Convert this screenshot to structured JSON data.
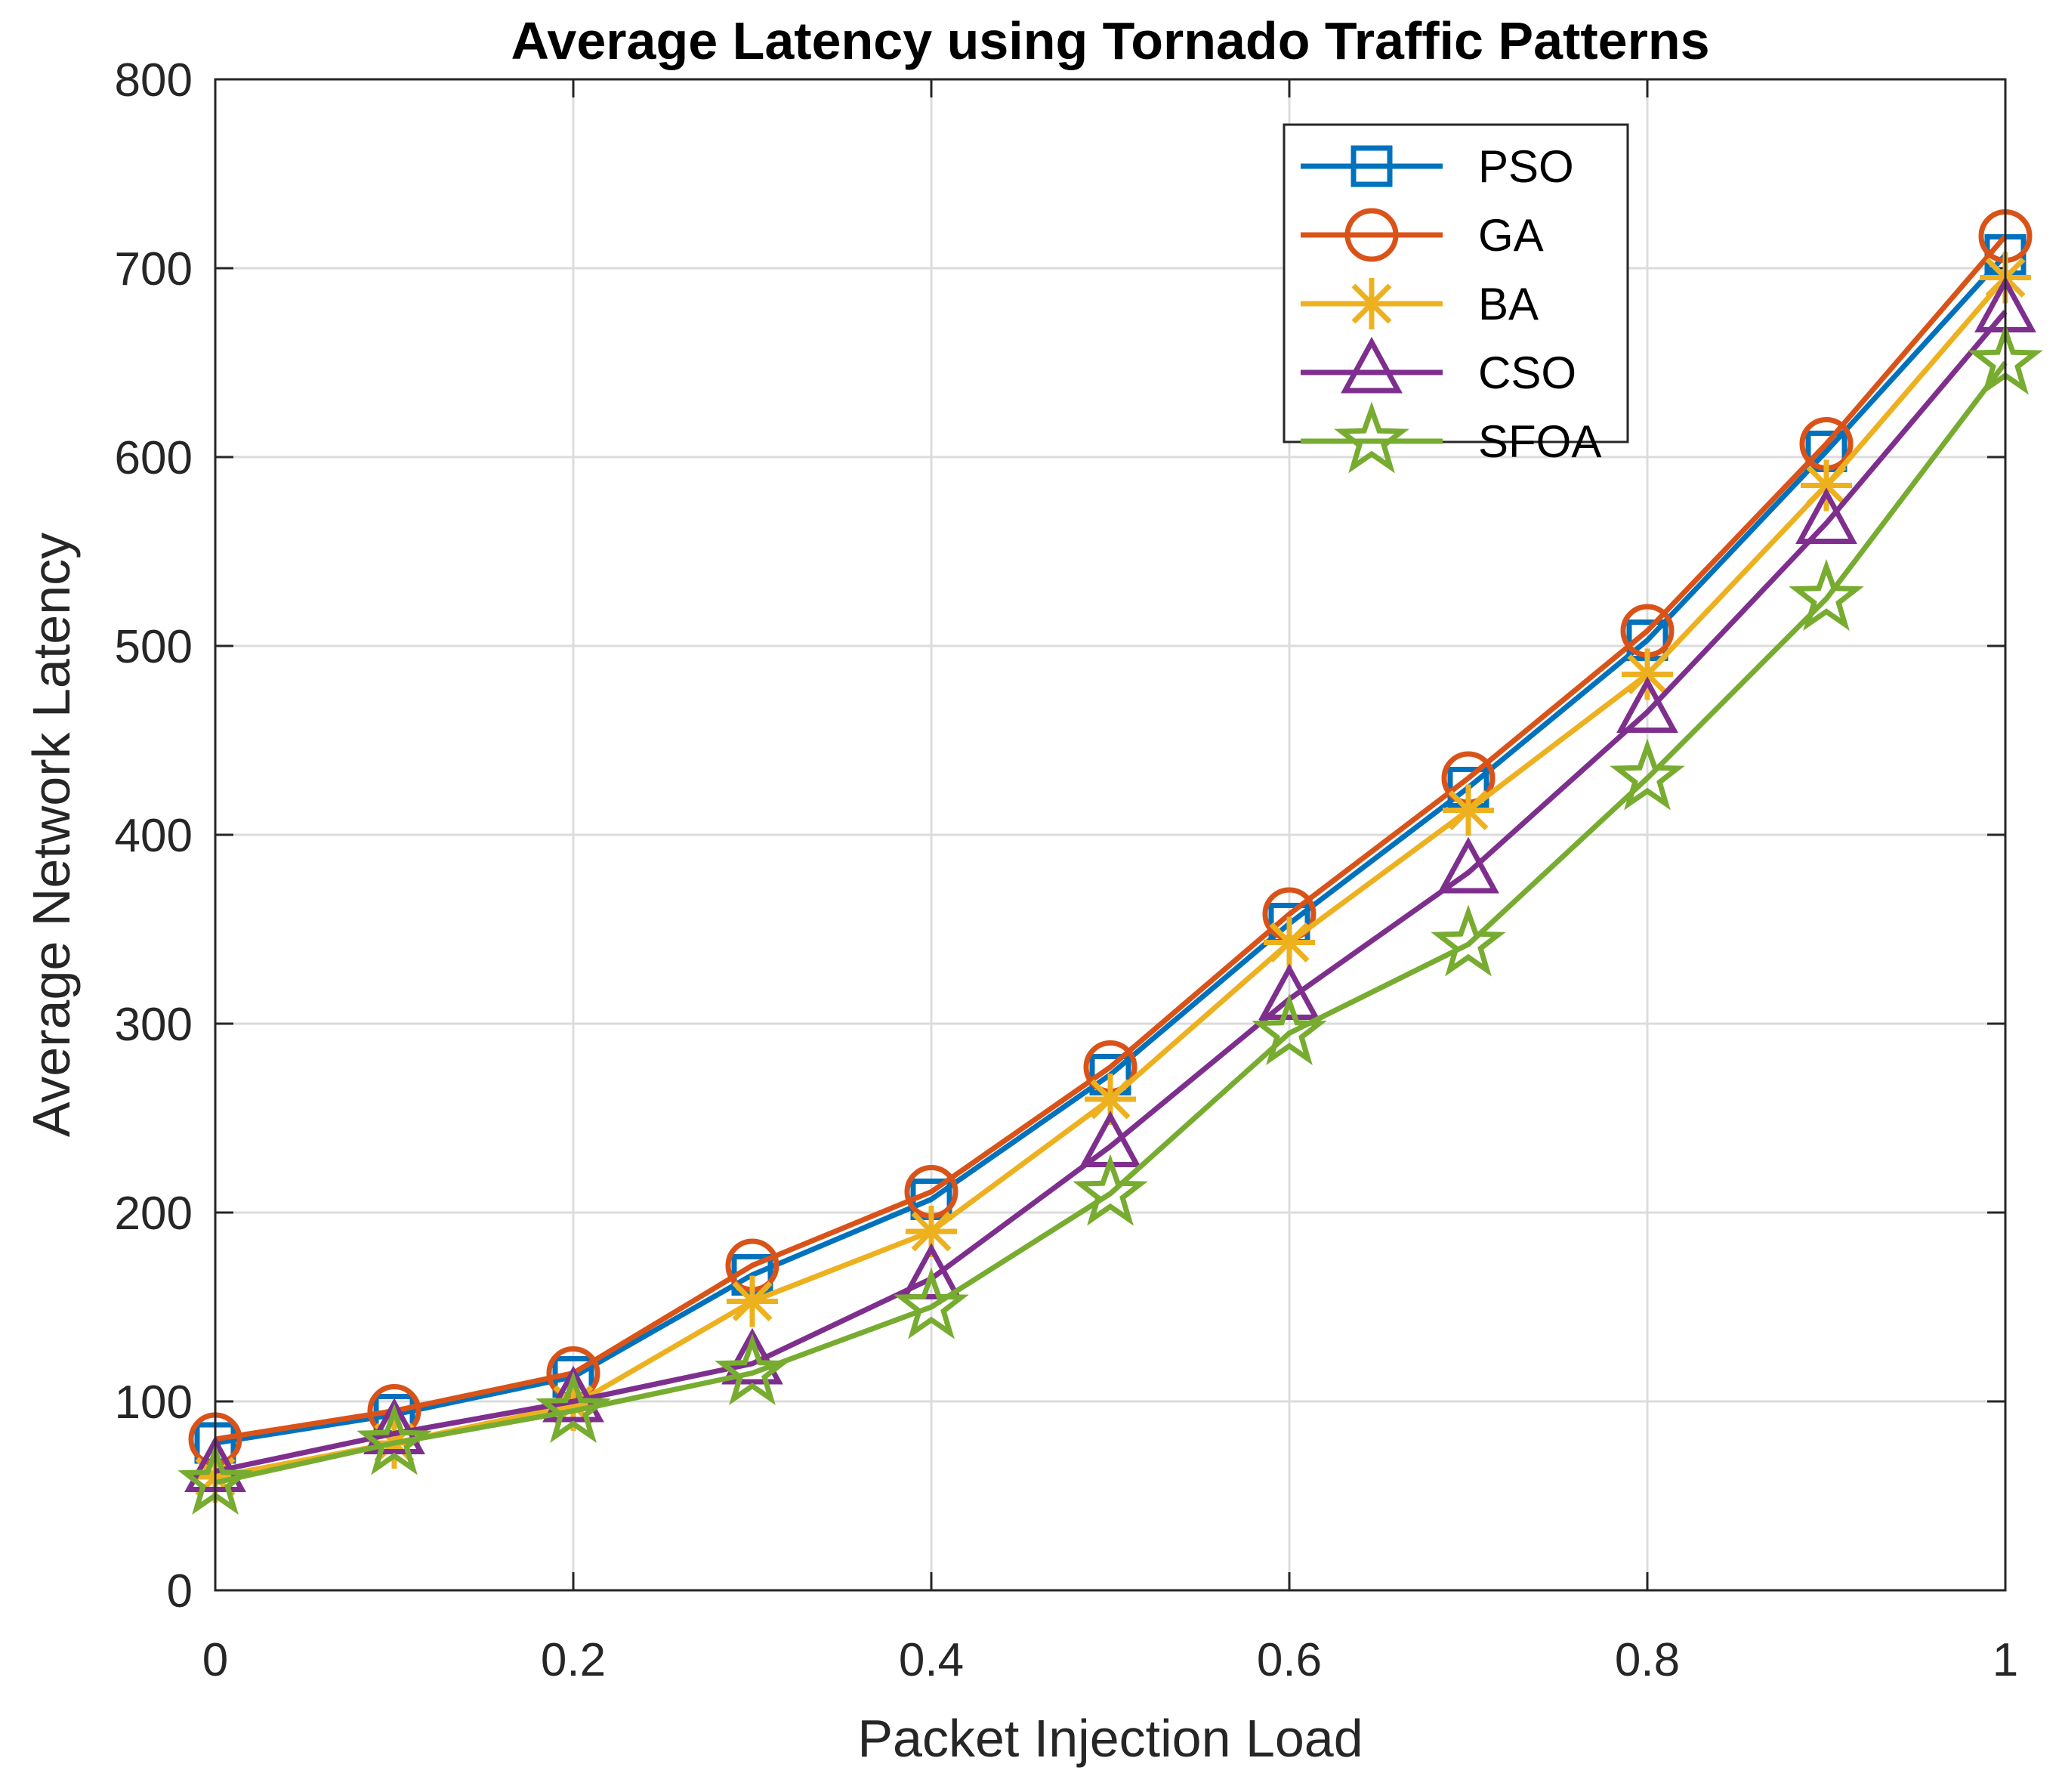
{
  "chart_data": {
    "type": "line",
    "title": "Average Latency using Tornado Traffic Patterns",
    "xlabel": "Packet Injection Load",
    "ylabel": "Average Network Latency",
    "xlim": [
      0,
      1
    ],
    "ylim": [
      0,
      800
    ],
    "xticks": [
      0,
      0.2,
      0.4,
      0.6,
      0.8,
      1
    ],
    "xtick_labels": [
      "0",
      "0.2",
      "0.4",
      "0.6",
      "0.8",
      "1"
    ],
    "yticks": [
      0,
      100,
      200,
      300,
      400,
      500,
      600,
      700,
      800
    ],
    "ytick_labels": [
      "0",
      "100",
      "200",
      "300",
      "400",
      "500",
      "600",
      "700",
      "800"
    ],
    "grid": true,
    "legend_position": "top-right",
    "x": [
      0,
      0.1,
      0.2,
      0.3,
      0.4,
      0.5,
      0.6,
      0.7,
      0.8,
      0.9,
      1.0
    ],
    "series": [
      {
        "name": "PSO",
        "color": "#0072BD",
        "marker": "square",
        "values": [
          78,
          93,
          113,
          167,
          207,
          273,
          353,
          425,
          503,
          603,
          707
        ]
      },
      {
        "name": "GA",
        "color": "#D95319",
        "marker": "circle",
        "values": [
          80,
          95,
          115,
          172,
          211,
          277,
          358,
          430,
          508,
          607,
          717
        ]
      },
      {
        "name": "BA",
        "color": "#EDB120",
        "marker": "asterisk",
        "values": [
          60,
          78,
          98,
          153,
          190,
          260,
          343,
          413,
          485,
          585,
          695
        ]
      },
      {
        "name": "CSO",
        "color": "#7E2F8E",
        "marker": "triangle",
        "values": [
          63,
          83,
          100,
          120,
          165,
          235,
          313,
          380,
          465,
          565,
          677
        ]
      },
      {
        "name": "SFOA",
        "color": "#77AC30",
        "marker": "star",
        "values": [
          57,
          78,
          95,
          115,
          150,
          210,
          295,
          342,
          430,
          525,
          650
        ]
      }
    ]
  }
}
